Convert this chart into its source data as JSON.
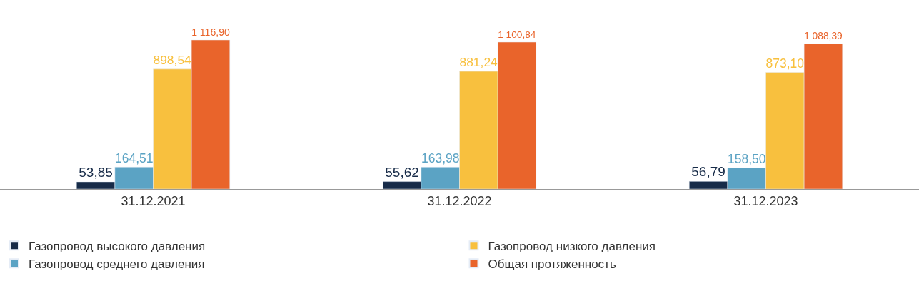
{
  "chart_data": {
    "type": "bar",
    "categories": [
      "31.12.2021",
      "31.12.2022",
      "31.12.2023"
    ],
    "series": [
      {
        "name": "Газопровод высокого давления",
        "color": "#172b48",
        "values": [
          53.85,
          55.62,
          56.79
        ],
        "value_labels": [
          "53,85",
          "55,62",
          "56,79"
        ]
      },
      {
        "name": "Газопровод среднего давления",
        "color": "#5ba3c4",
        "values": [
          164.51,
          163.98,
          158.5
        ],
        "value_labels": [
          "164,51",
          "163,98",
          "158,50"
        ]
      },
      {
        "name": "Газопровод низкого давления",
        "color": "#f8c03e",
        "values": [
          898.54,
          881.24,
          873.1
        ],
        "value_labels": [
          "898,54",
          "881,24",
          "873,10"
        ]
      },
      {
        "name": "Общая протяженность",
        "color": "#e9642b",
        "values": [
          1116.9,
          1100.84,
          1088.39
        ],
        "value_labels": [
          "1 116,90",
          "1 100,84",
          "1 088,39"
        ]
      }
    ],
    "legend": "bottom"
  }
}
